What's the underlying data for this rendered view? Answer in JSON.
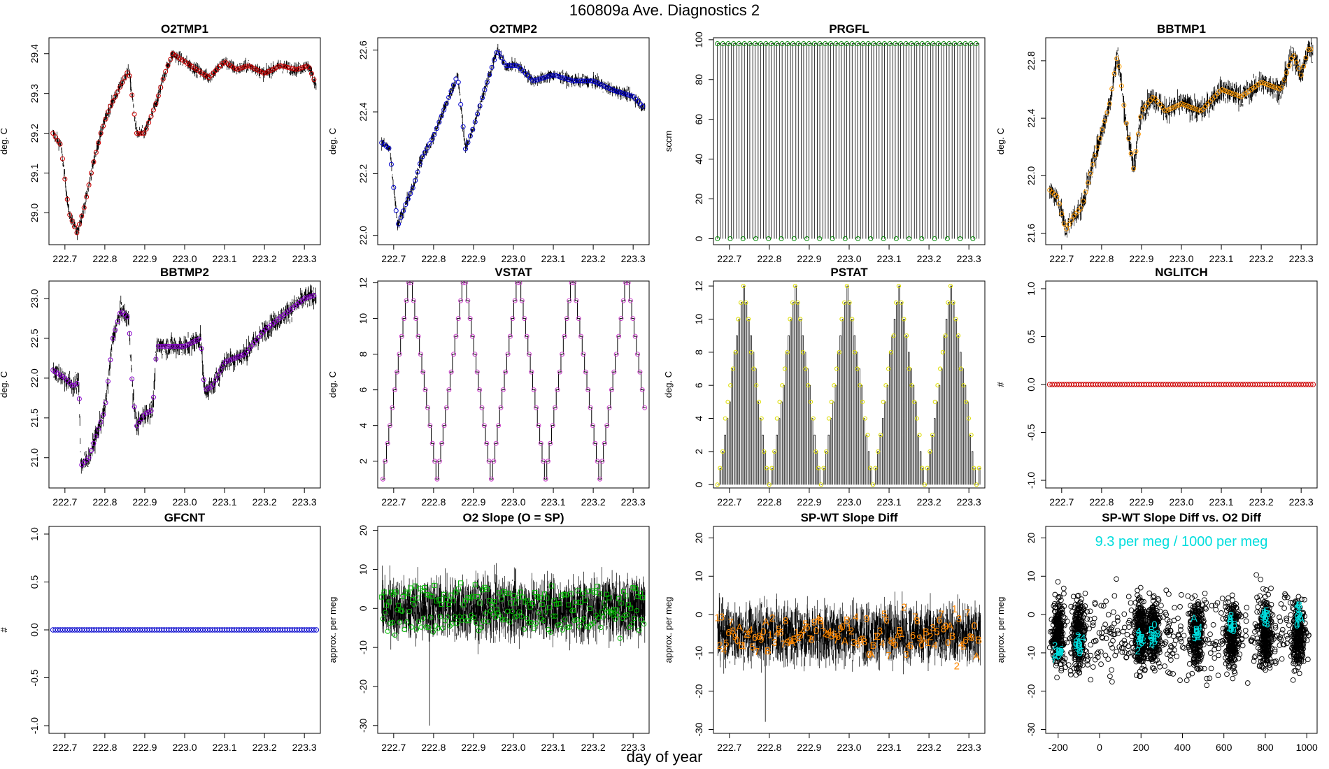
{
  "figure": {
    "title": "160809a   Ave. Diagnostics 2",
    "xlabel": "day of year"
  },
  "chart_data": [
    {
      "type": "line",
      "title": "O2TMP1",
      "ylabel": "deg. C",
      "xlim": [
        222.66,
        223.34
      ],
      "ylim": [
        28.92,
        29.44
      ],
      "xticks": [
        222.7,
        222.8,
        222.9,
        223.0,
        223.1,
        223.2,
        223.3
      ],
      "xtick_decimals": 1,
      "yticks": [
        29.0,
        29.1,
        29.2,
        29.3,
        29.4
      ],
      "ytick_decimals": 1,
      "series_color": "#000000",
      "marker": "circle",
      "marker_color": "#cc0000",
      "band": 0.02,
      "noise": 0.012,
      "x": [
        222.67,
        222.69,
        222.71,
        222.73,
        222.75,
        222.77,
        222.79,
        222.81,
        222.83,
        222.86,
        222.88,
        222.9,
        222.93,
        222.95,
        222.97,
        223.0,
        223.03,
        223.06,
        223.1,
        223.13,
        223.16,
        223.2,
        223.24,
        223.28,
        223.31,
        223.33
      ],
      "y": [
        29.2,
        29.17,
        29.0,
        28.95,
        29.02,
        29.12,
        29.2,
        29.26,
        29.3,
        29.36,
        29.2,
        29.2,
        29.28,
        29.35,
        29.4,
        29.38,
        29.36,
        29.34,
        29.38,
        29.36,
        29.37,
        29.35,
        29.37,
        29.36,
        29.37,
        29.32
      ]
    },
    {
      "type": "line",
      "title": "O2TMP2",
      "ylabel": "deg. C",
      "xlim": [
        222.66,
        223.34
      ],
      "ylim": [
        21.97,
        22.64
      ],
      "xticks": [
        222.7,
        222.8,
        222.9,
        223.0,
        223.1,
        223.2,
        223.3
      ],
      "xtick_decimals": 1,
      "yticks": [
        22.0,
        22.2,
        22.4,
        22.6
      ],
      "ytick_decimals": 1,
      "series_color": "#000000",
      "marker": "circle",
      "marker_color": "#0000cc",
      "band": 0.03,
      "noise": 0.015,
      "x": [
        222.67,
        222.69,
        222.71,
        222.73,
        222.75,
        222.77,
        222.8,
        222.83,
        222.86,
        222.88,
        222.9,
        222.93,
        222.96,
        222.98,
        223.01,
        223.05,
        223.1,
        223.15,
        223.2,
        223.25,
        223.3,
        223.33
      ],
      "y": [
        22.3,
        22.28,
        22.03,
        22.1,
        22.16,
        22.25,
        22.32,
        22.42,
        22.52,
        22.28,
        22.35,
        22.48,
        22.6,
        22.55,
        22.55,
        22.5,
        22.52,
        22.5,
        22.5,
        22.47,
        22.45,
        22.41
      ]
    },
    {
      "type": "line",
      "title": "PRGFL",
      "ylabel": "sccm",
      "xlim": [
        222.66,
        223.34
      ],
      "ylim": [
        -3,
        101
      ],
      "xticks": [
        222.7,
        222.8,
        222.9,
        223.0,
        223.1,
        223.2,
        223.3
      ],
      "xtick_decimals": 1,
      "yticks": [
        0,
        20,
        40,
        60,
        80,
        100
      ],
      "ytick_decimals": 0,
      "series_color": "#000000",
      "marker": "circle",
      "marker_color": "#008800",
      "pattern": "pulse",
      "pulse_high": 98,
      "pulse_low": 0,
      "pulse_period": 0.0135
    },
    {
      "type": "line",
      "title": "BBTMP1",
      "ylabel": "deg. C",
      "xlim": [
        222.66,
        223.34
      ],
      "ylim": [
        21.52,
        22.96
      ],
      "xticks": [
        222.7,
        222.8,
        222.9,
        223.0,
        223.1,
        223.2,
        223.3
      ],
      "xtick_decimals": 1,
      "yticks": [
        21.6,
        22.0,
        22.4,
        22.8
      ],
      "ytick_decimals": 1,
      "series_color": "#000000",
      "marker": "circle",
      "marker_color": "#ff9900",
      "band": 0.05,
      "noise": 0.06,
      "x": [
        222.67,
        222.69,
        222.71,
        222.73,
        222.75,
        222.78,
        222.8,
        222.82,
        222.84,
        222.86,
        222.88,
        222.9,
        222.93,
        222.96,
        223.0,
        223.05,
        223.1,
        223.15,
        223.2,
        223.25,
        223.28,
        223.3,
        223.32,
        223.33
      ],
      "y": [
        21.9,
        21.85,
        21.62,
        21.72,
        21.78,
        22.1,
        22.3,
        22.5,
        22.85,
        22.4,
        22.05,
        22.45,
        22.55,
        22.45,
        22.5,
        22.45,
        22.6,
        22.55,
        22.65,
        22.6,
        22.85,
        22.7,
        22.9,
        22.85
      ]
    },
    {
      "type": "line",
      "title": "BBTMP2",
      "ylabel": "deg. C",
      "xlim": [
        222.66,
        223.34
      ],
      "ylim": [
        20.62,
        23.22
      ],
      "xticks": [
        222.7,
        222.8,
        222.9,
        223.0,
        223.1,
        223.2,
        223.3
      ],
      "xtick_decimals": 1,
      "yticks": [
        21.0,
        21.5,
        22.0,
        22.5,
        23.0
      ],
      "ytick_decimals": 1,
      "series_color": "#000000",
      "marker": "circle",
      "marker_color": "#8800cc",
      "band": 0.1,
      "noise": 0.1,
      "x": [
        222.67,
        222.7,
        222.72,
        222.735,
        222.74,
        222.76,
        222.78,
        222.8,
        222.82,
        222.84,
        222.86,
        222.87,
        222.88,
        222.9,
        222.92,
        222.93,
        222.95,
        223.0,
        223.04,
        223.05,
        223.07,
        223.1,
        223.15,
        223.2,
        223.25,
        223.3,
        223.33
      ],
      "y": [
        22.1,
        22.0,
        21.9,
        21.95,
        20.9,
        21.0,
        21.3,
        21.6,
        22.5,
        22.85,
        22.75,
        21.8,
        21.4,
        21.55,
        21.6,
        22.4,
        22.4,
        22.4,
        22.5,
        21.85,
        21.9,
        22.2,
        22.3,
        22.6,
        22.8,
        23.0,
        23.05
      ]
    },
    {
      "type": "line",
      "title": "VSTAT",
      "ylabel": "deg. C",
      "xlim": [
        222.66,
        223.34
      ],
      "ylim": [
        0.5,
        12.1
      ],
      "xticks": [
        222.7,
        222.8,
        222.9,
        223.0,
        223.1,
        223.2,
        223.3
      ],
      "xtick_decimals": 1,
      "yticks": [
        2,
        4,
        6,
        8,
        10,
        12
      ],
      "ytick_decimals": 0,
      "series_color": "#000000",
      "marker": "circle",
      "marker_color": "#cc44cc",
      "pattern": "staircase",
      "cycle_period": 0.13,
      "cycle_start": 222.67,
      "steps_per_cycle": 22,
      "min_level": 1,
      "max_level": 12
    },
    {
      "type": "line",
      "title": "PSTAT",
      "ylabel": "deg. C",
      "xlim": [
        222.66,
        223.34
      ],
      "ylim": [
        -0.2,
        12.3
      ],
      "xticks": [
        222.7,
        222.8,
        222.9,
        223.0,
        223.1,
        223.2,
        223.3
      ],
      "xtick_decimals": 1,
      "yticks": [
        0,
        2,
        4,
        6,
        8,
        10,
        12
      ],
      "ytick_decimals": 0,
      "series_color": "#000000",
      "marker": "circle",
      "marker_color": "#dddd00",
      "pattern": "pulse-triangle",
      "cycle_period": 0.13,
      "cycle_start": 222.67,
      "pulse_period": 0.0059,
      "max_level": 12
    },
    {
      "type": "scatter",
      "title": "NGLITCH",
      "ylabel": "#",
      "xlim": [
        222.66,
        223.34
      ],
      "ylim": [
        -1.08,
        1.08
      ],
      "xticks": [
        222.7,
        222.8,
        222.9,
        223.0,
        223.1,
        223.2,
        223.3
      ],
      "xtick_decimals": 1,
      "yticks": [
        -1.0,
        -0.5,
        0.0,
        0.5,
        1.0
      ],
      "ytick_decimals": 1,
      "marker": "circle",
      "marker_color": "#cc0000",
      "pattern": "constant",
      "constant_value": 0,
      "count": 110
    },
    {
      "type": "scatter",
      "title": "GFCNT",
      "ylabel": "#",
      "xlim": [
        222.66,
        223.34
      ],
      "ylim": [
        -1.08,
        1.08
      ],
      "xticks": [
        222.7,
        222.8,
        222.9,
        223.0,
        223.1,
        223.2,
        223.3
      ],
      "xtick_decimals": 1,
      "yticks": [
        -1.0,
        -0.5,
        0.0,
        0.5,
        1.0
      ],
      "ytick_decimals": 1,
      "marker": "circle",
      "marker_color": "#0000cc",
      "pattern": "constant",
      "constant_value": 0,
      "count": 110
    },
    {
      "type": "line",
      "title": "O2 Slope (O = SP)",
      "ylabel": "approx. per meg",
      "xlim": [
        222.66,
        223.34
      ],
      "ylim": [
        -32,
        21
      ],
      "xticks": [
        222.7,
        222.8,
        222.9,
        223.0,
        223.1,
        223.2,
        223.3
      ],
      "xtick_decimals": 1,
      "yticks": [
        -30,
        -20,
        -10,
        0,
        10,
        20
      ],
      "ytick_decimals": 0,
      "series_color": "#000000",
      "marker": "mixed",
      "marker_color": "#00bb00",
      "pattern": "noise",
      "center": 0,
      "spread": 7,
      "spike_min": -30,
      "marker_center_a": 3,
      "marker_center_b": -3,
      "marker_spread": 2.5
    },
    {
      "type": "line",
      "title": "SP-WT Slope Diff",
      "ylabel": "approx. per meg",
      "xlim": [
        222.66,
        223.34
      ],
      "ylim": [
        -31,
        23
      ],
      "xticks": [
        222.7,
        222.8,
        222.9,
        223.0,
        223.1,
        223.2,
        223.3
      ],
      "xtick_decimals": 1,
      "yticks": [
        -30,
        -20,
        -10,
        0,
        10,
        20
      ],
      "ytick_decimals": 0,
      "series_color": "#000000",
      "marker": "labels",
      "marker_color": "#ff8800",
      "pattern": "noise",
      "center": -5,
      "spread": 7,
      "spike_min": -28,
      "marker_center_a": -5,
      "marker_center_b": -5,
      "marker_spread": 4,
      "label_chars": [
        "1",
        "2",
        "3",
        "4",
        "5",
        "6",
        "7",
        "8",
        "9",
        "0",
        "A",
        "B"
      ]
    },
    {
      "type": "scatter",
      "title": "SP-WT Slope Diff vs. O2 Diff",
      "ylabel": "approx. per meg",
      "xlim": [
        -260,
        1050
      ],
      "ylim": [
        -31,
        23
      ],
      "xticks": [
        -200,
        0,
        200,
        400,
        600,
        800,
        1000
      ],
      "xtick_decimals": 0,
      "yticks": [
        -30,
        -20,
        -10,
        0,
        10,
        20
      ],
      "ytick_decimals": 0,
      "marker": "circle",
      "marker_color": "#000000",
      "pattern": "clusters",
      "cluster_centers": [
        -200,
        -100,
        200,
        260,
        470,
        640,
        800,
        960
      ],
      "cluster_spread": 30,
      "y_center": -5,
      "y_spread": 7,
      "label_color": "#00dddd",
      "label_chars": [
        "1",
        "2",
        "3",
        "4",
        "5",
        "6",
        "7",
        "8",
        "9",
        "0",
        "A",
        "B"
      ],
      "label_y": [
        -10,
        -8,
        -7,
        -6,
        -4,
        -2,
        -1,
        0
      ],
      "annotation": "9.3 per meg / 1000 per meg",
      "annotation_color": "#00dddd"
    }
  ]
}
